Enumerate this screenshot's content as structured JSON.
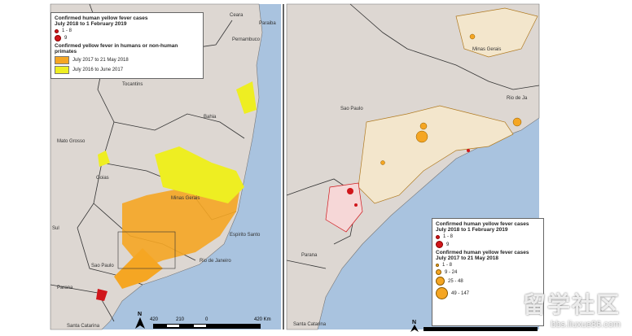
{
  "left_map": {
    "legend": {
      "title1": "Confirmed human yellow fever cases",
      "period1": "July 2018 to 1 February 2019",
      "items1": [
        "1 - 8",
        "9"
      ],
      "title2": "Confirmed yellow fever in humans or non-human primates",
      "items2": [
        {
          "label": "July 2017 to 21 May 2018",
          "color": "#f5a623"
        },
        {
          "label": "July 2016 to June 2017",
          "color": "#eeee22"
        }
      ]
    },
    "places": [
      "Ceara",
      "Paraiba",
      "Pernambuco",
      "Tocantins",
      "Bahia",
      "Mato Grosso",
      "Goias",
      "Minas Gerais",
      "Espirito Santo",
      "Rio de Janeiro",
      "Sao Paulo",
      "Parana",
      "Sul",
      "Santa Catarina"
    ],
    "scale": {
      "ticks": [
        "420",
        "210",
        "0",
        "420 Km"
      ],
      "north": "N"
    }
  },
  "right_map": {
    "legend": {
      "title1": "Confirmed human yellow fever cases",
      "period1": "July 2018 to 1 February 2019",
      "items1": [
        "1 - 8",
        "9"
      ],
      "title2": "Confirmed human yellow fever cases",
      "period2": "July 2017 to 21 May 2018",
      "items2": [
        "1 - 8",
        "9 - 24",
        "25 - 48",
        "49 - 147"
      ]
    },
    "places": [
      "Minas Gerais",
      "Sao Paulo",
      "Rio de Ja",
      "Parana",
      "Santa Catarina"
    ],
    "scale": {
      "north": "N"
    }
  },
  "colors": {
    "land": "#ddd7d2",
    "sea": "#a9c3df",
    "recent": "#f5a623",
    "older": "#eeee22",
    "human": "#d0161b"
  },
  "watermark": {
    "text": "留学社区",
    "url": "bbs.liuxue86.com"
  }
}
